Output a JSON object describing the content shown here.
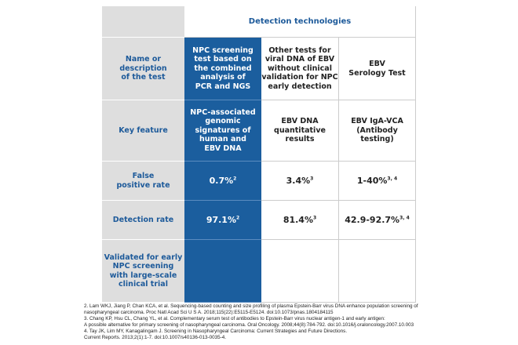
{
  "header": "Detection technologies",
  "rows": [
    {
      "label": [
        "Name or",
        "description",
        "of the test"
      ],
      "cells": [
        {
          "lines": [
            "NPC screening",
            "test based on",
            "the combined",
            "analysis of",
            "PCR and NGS"
          ]
        },
        {
          "lines": [
            "Other tests for",
            "viral DNA of EBV",
            "without clinical",
            "validation for NPC",
            "early detection"
          ]
        },
        {
          "lines": [
            "EBV",
            "Serology Test"
          ]
        }
      ]
    },
    {
      "label": [
        "Key feature"
      ],
      "cells": [
        {
          "lines": [
            "NPC-associated",
            "genomic",
            "signatures of",
            "human and",
            "EBV DNA"
          ]
        },
        {
          "lines": [
            "EBV DNA",
            "quantitative",
            "results"
          ]
        },
        {
          "lines": [
            "EBV IgA-VCA",
            "(Antibody testing)"
          ]
        }
      ]
    },
    {
      "label": [
        "False",
        "positive rate"
      ],
      "cells": [
        {
          "lines": [
            "0.7%"
          ],
          "sup": "2"
        },
        {
          "lines": [
            "3.4%"
          ],
          "sup": "3"
        },
        {
          "lines": [
            "1-40%"
          ],
          "sup": "3, 4"
        }
      ]
    },
    {
      "label": [
        "Detection rate"
      ],
      "cells": [
        {
          "lines": [
            "97.1%"
          ],
          "sup": "2"
        },
        {
          "lines": [
            "81.4%"
          ],
          "sup": "3"
        },
        {
          "lines": [
            "42.9-92.7%"
          ],
          "sup": "3, 4"
        }
      ]
    },
    {
      "label": [
        "Validated for early",
        "NPC screening",
        "with large-scale",
        "clinical trial"
      ]
    }
  ],
  "footnotes": [
    "2. Lam WKJ, Jiang P, Chan KCA, et al. Sequencing-based counting and size profiling of plasma Epstein-Barr virus DNA enhance population screening of",
    "nasopharyngeal carcinoma. Proc Natl Acad Sci U S A. 2018;115(22):E5115-E5124. doi:10.1073/pnas.1804184115",
    "3. Chang KP, Hsu CL, Chang YL, et al. Complementary serum test of antibodies to Epstein-Barr virus nuclear antigen-1 and early antigen:",
    "A possible alternative for primary screening of nasopharyngeal carcinoma. Oral Oncology. 2008;44(8):784-792. doi:10.1016/j.oraloncology.2007.10.003",
    "4. Tay JK, Lim MY, Kanagalingam J. Screening in Nasopharyngeal Carcinoma: Current Strategies and Future Directions.",
    "Current  Reports. 2013;2(1):1-7. doi:10.1007/s40136-013-0035-4."
  ]
}
